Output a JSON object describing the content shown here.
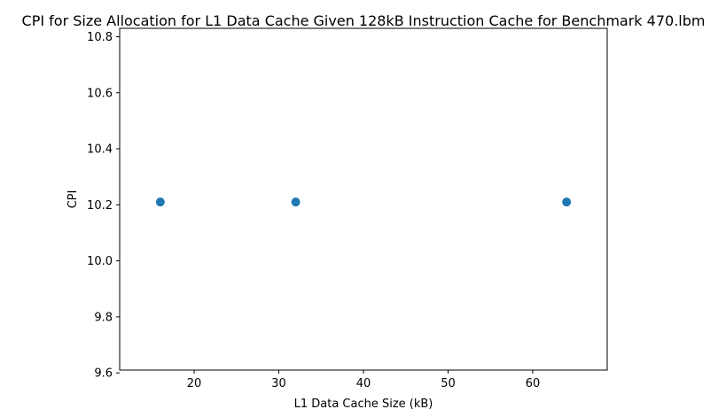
{
  "chart_data": {
    "type": "scatter",
    "title": "CPI for Size Allocation for L1 Data Cache Given 128kB Instruction Cache for Benchmark 470.lbm",
    "xlabel": "L1 Data Cache Size (kB)",
    "ylabel": "CPI",
    "x": [
      16,
      32,
      64
    ],
    "y": [
      10.21,
      10.21,
      10.21
    ],
    "xlim": [
      11.2,
      68.8
    ],
    "ylim": [
      9.61,
      10.83
    ],
    "xticks": [
      20,
      30,
      40,
      50,
      60
    ],
    "xtick_labels": [
      "20",
      "30",
      "40",
      "50",
      "60"
    ],
    "yticks": [
      9.6,
      9.8,
      10.0,
      10.2,
      10.4,
      10.6,
      10.8
    ],
    "ytick_labels": [
      "9.6",
      "9.8",
      "10.0",
      "10.2",
      "10.4",
      "10.6",
      "10.8"
    ],
    "grid": false,
    "marker_color": "#1f77b4"
  }
}
